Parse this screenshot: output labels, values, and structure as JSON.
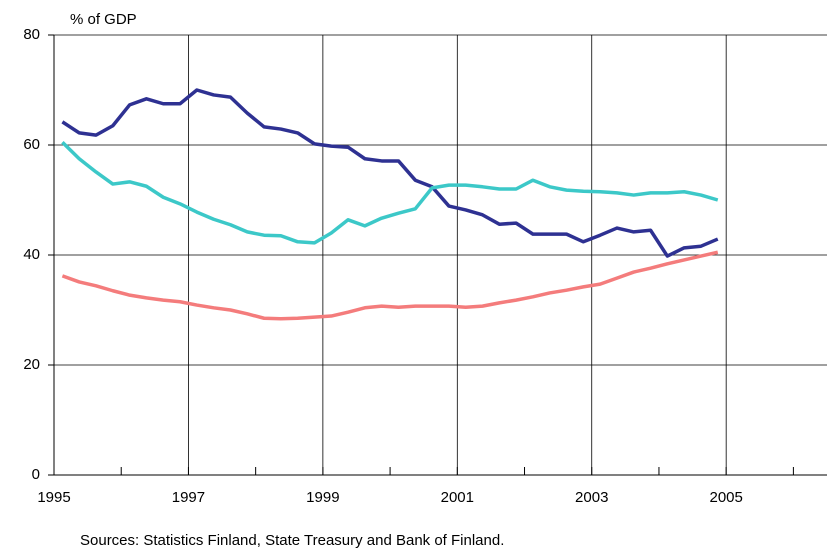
{
  "chart_data": {
    "type": "line",
    "ylabel": "% of GDP",
    "note": "Sources:  Statistics Finland, State Treasury and Bank of Finland.",
    "xlim": [
      1995,
      2006.5
    ],
    "xticks": [
      1995,
      1997,
      1999,
      2001,
      2003,
      2005
    ],
    "xminor_ticks": [
      1996,
      1997,
      1998,
      1999,
      2000,
      2001,
      2002,
      2003,
      2004,
      2005,
      2006
    ],
    "ylim": [
      0,
      80
    ],
    "yticks": [
      0,
      20,
      40,
      60,
      80
    ],
    "grid": true,
    "x": [
      1995.125,
      1995.375,
      1995.625,
      1995.875,
      1996.125,
      1996.375,
      1996.625,
      1996.875,
      1997.125,
      1997.375,
      1997.625,
      1997.875,
      1998.125,
      1998.375,
      1998.625,
      1998.875,
      1999.125,
      1999.375,
      1999.625,
      1999.875,
      2000.125,
      2000.375,
      2000.625,
      2000.875,
      2001.125,
      2001.375,
      2001.625,
      2001.875,
      2002.125,
      2002.375,
      2002.625,
      2002.875,
      2003.125,
      2003.375,
      2003.625,
      2003.875,
      2004.125,
      2004.375,
      2004.625,
      2004.875
    ],
    "series": [
      {
        "color": "#2e3192",
        "values": [
          64.2,
          62.2,
          61.8,
          63.5,
          67.3,
          68.4,
          67.5,
          67.5,
          70,
          69.1,
          68.7,
          65.8,
          63.3,
          62.9,
          62.2,
          60.2,
          59.8,
          59.6,
          57.5,
          57.1,
          57.1,
          53.6,
          52.4,
          48.9,
          48.2,
          47.3,
          45.6,
          45.8,
          43.8,
          43.8,
          43.8,
          42.4,
          43.6,
          44.9,
          44.2,
          44.5,
          39.8,
          41.3,
          41.6,
          42.9
        ]
      },
      {
        "color": "#3cc8c8",
        "values": [
          60.5,
          57.5,
          55.1,
          52.9,
          53.3,
          52.5,
          50.5,
          49.3,
          47.8,
          46.5,
          45.5,
          44.2,
          43.6,
          43.5,
          42.4,
          42.2,
          44,
          46.4,
          45.3,
          46.7,
          47.6,
          48.4,
          52.2,
          52.7,
          52.7,
          52.4,
          52,
          52,
          53.6,
          52.4,
          51.8,
          51.6,
          51.5,
          51.3,
          50.9,
          51.3,
          51.3,
          51.5,
          50.9,
          50
        ]
      },
      {
        "color": "#f47c7c",
        "values": [
          36.2,
          35.1,
          34.4,
          33.5,
          32.7,
          32.2,
          31.8,
          31.5,
          30.9,
          30.4,
          30,
          29.3,
          28.5,
          28.4,
          28.5,
          28.7,
          28.9,
          29.6,
          30.4,
          30.7,
          30.5,
          30.7,
          30.7,
          30.7,
          30.5,
          30.7,
          31.3,
          31.8,
          32.4,
          33.1,
          33.6,
          34.2,
          34.7,
          35.8,
          36.9,
          37.6,
          38.4,
          39.1,
          39.8,
          40.5
        ]
      }
    ]
  }
}
